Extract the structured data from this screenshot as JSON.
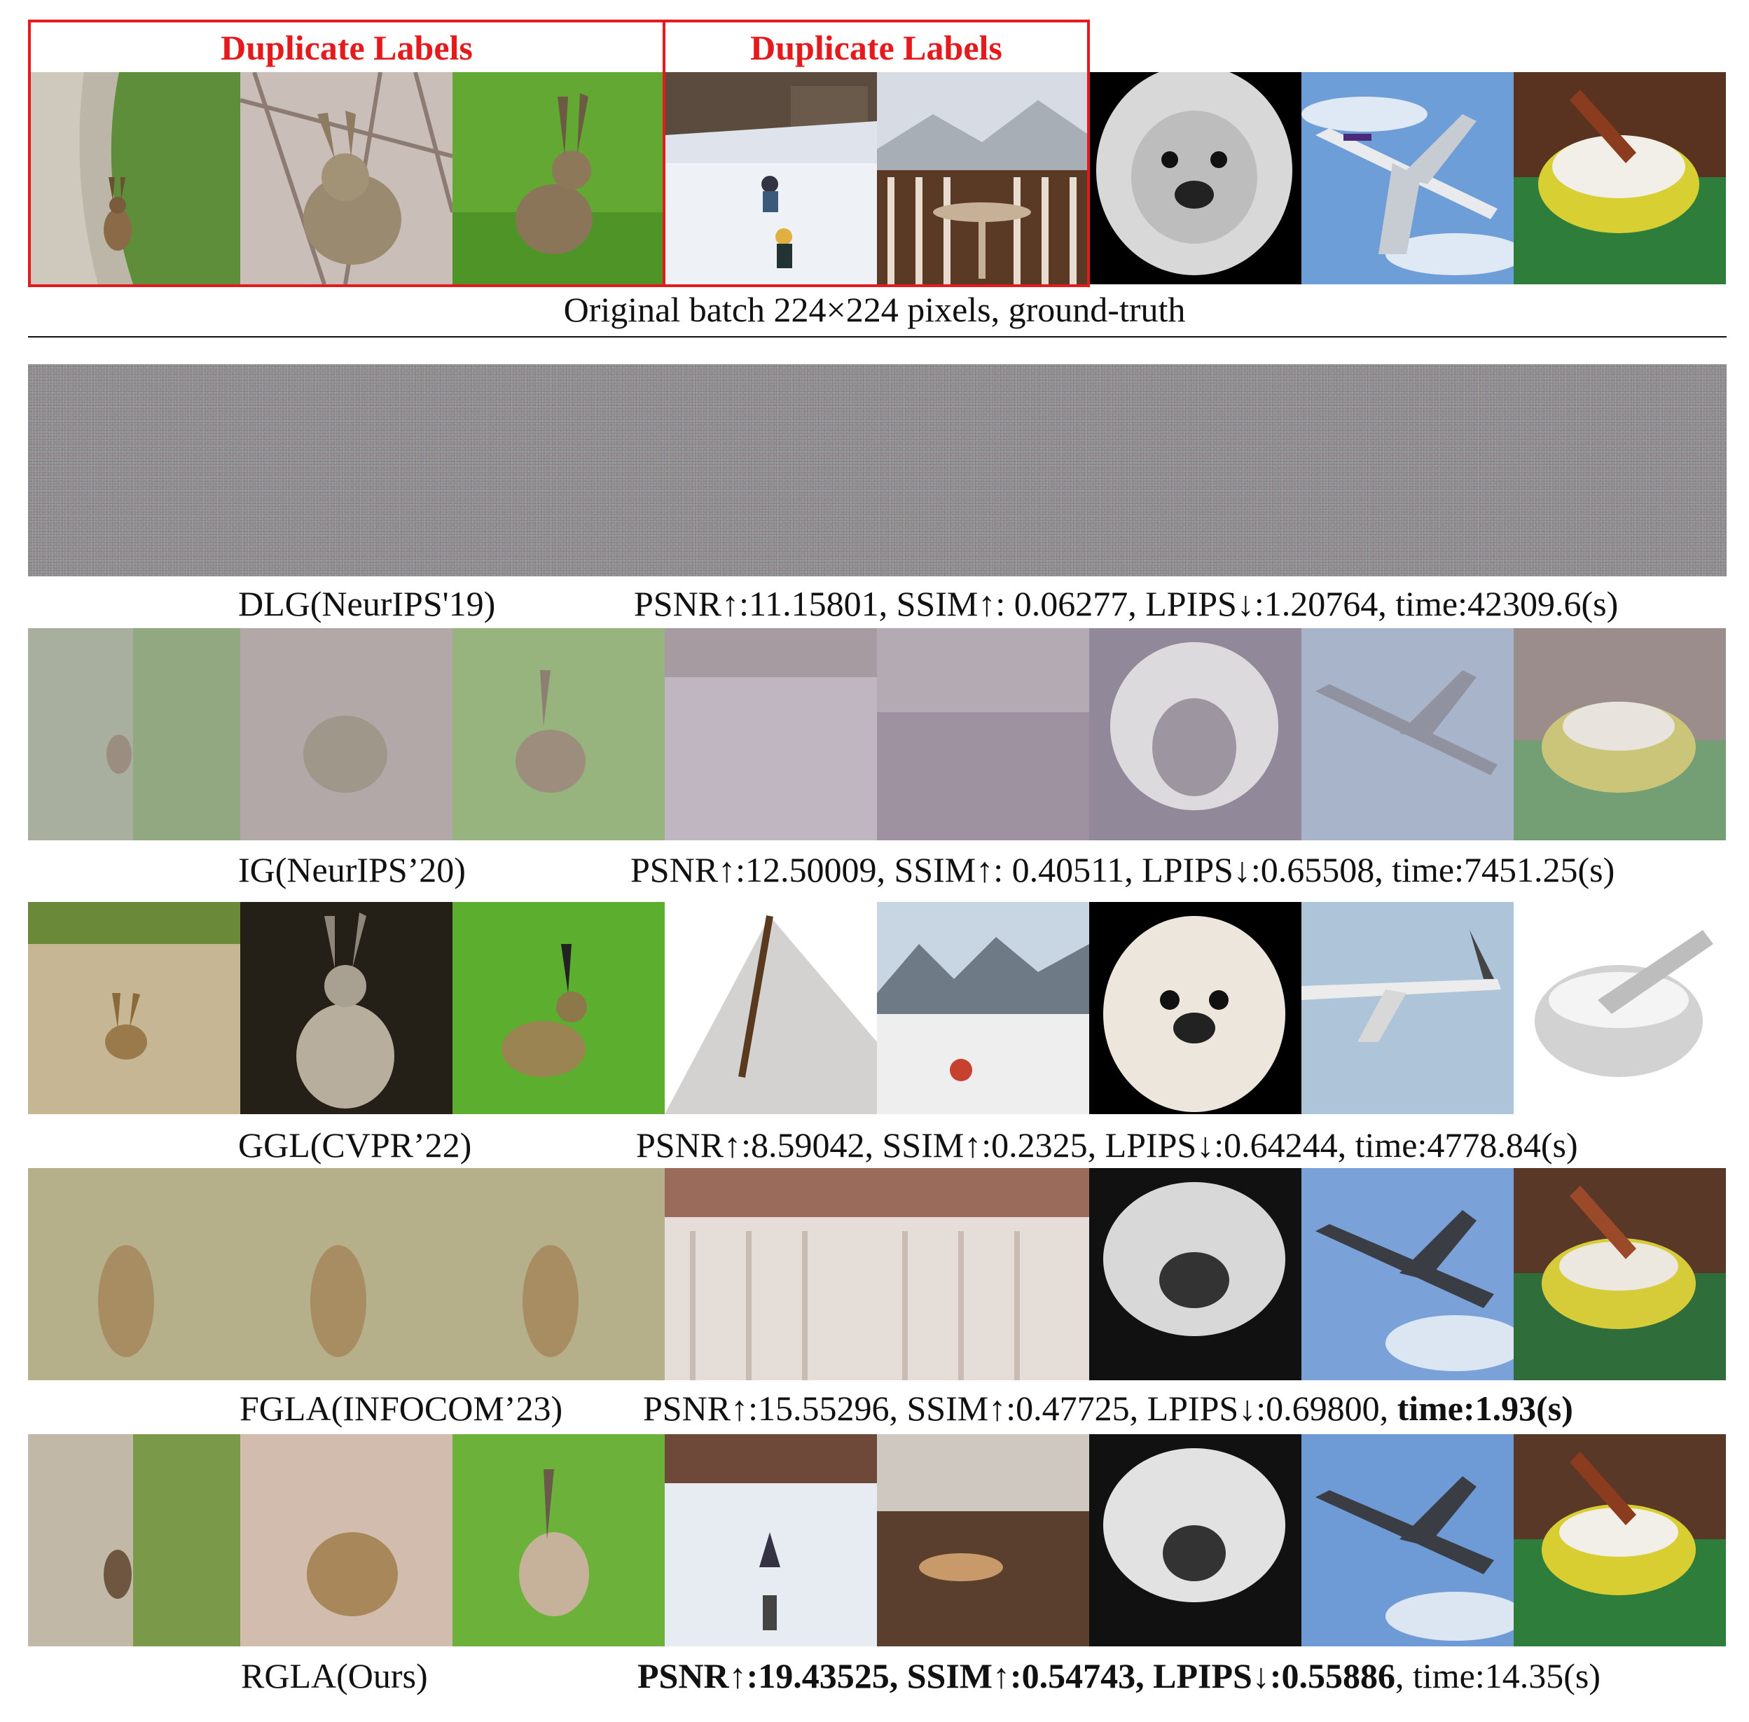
{
  "header": {
    "duplicate_label_left": "Duplicate Labels",
    "duplicate_label_right": "Duplicate Labels",
    "box_color": "#e41a1c",
    "original_caption": "Original batch 224×224 pixels, ground-truth"
  },
  "image_columns": [
    "hare on path",
    "hare among branches",
    "hare on grass",
    "children sledding in snow",
    "balcony table with alpine view",
    "pekingese dog",
    "FedEx airplane",
    "mortar and pestle"
  ],
  "methods": [
    {
      "name": "DLG(NeurIPS'19)",
      "metrics_text": "PSNR↑:11.15801, SSIM↑: 0.06277, LPIPS↓:1.20764, time:42309.6(s)"
    },
    {
      "name": "IG(NeurIPS’20)",
      "metrics_text": "PSNR↑:12.50009, SSIM↑: 0.40511, LPIPS↓:0.65508, time:7451.25(s)"
    },
    {
      "name": "GGL(CVPR’22)",
      "metrics_text": "PSNR↑:8.59042, SSIM↑:0.2325, LPIPS↓:0.64244, time:4778.84(s)"
    },
    {
      "name": "FGLA(INFOCOM’23)",
      "metrics_plain": "PSNR↑:15.55296, SSIM↑:0.47725, LPIPS↓:0.69800, ",
      "metrics_bold": "time:1.93(s)"
    },
    {
      "name": "RGLA(Ours)",
      "metrics_bold": "PSNR↑:19.43525, SSIM↑:0.54743, LPIPS↓:0.55886",
      "metrics_plain": ", time:14.35(s)"
    }
  ]
}
